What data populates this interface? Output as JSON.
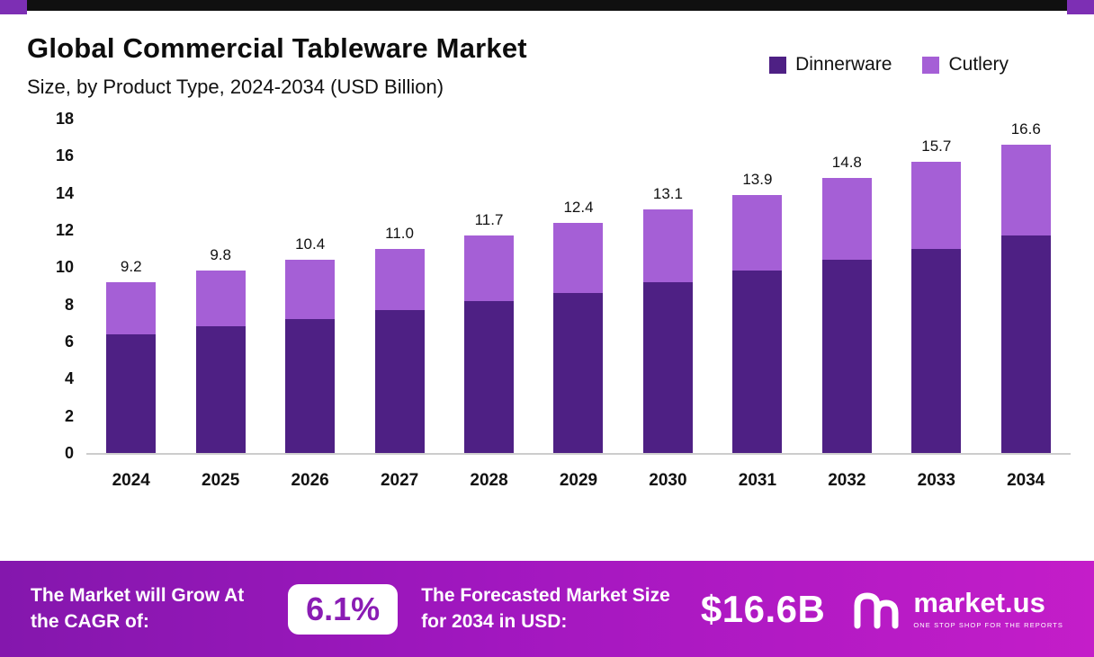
{
  "header": {
    "title": "Global Commercial Tableware Market",
    "subtitle": "Size, by Product Type, 2024-2034 (USD Billion)"
  },
  "legend": [
    {
      "label": "Dinnerware",
      "color": "#4e2084"
    },
    {
      "label": "Cutlery",
      "color": "#a55fd6"
    }
  ],
  "chart_data": {
    "type": "bar",
    "stacked": true,
    "title": "Global Commercial Tableware Market Size, by Product Type, 2024-2034 (USD Billion)",
    "categories": [
      "2024",
      "2025",
      "2026",
      "2027",
      "2028",
      "2029",
      "2030",
      "2031",
      "2032",
      "2033",
      "2034"
    ],
    "series": [
      {
        "name": "Dinnerware",
        "color": "#4e2084",
        "values": [
          6.4,
          6.8,
          7.2,
          7.7,
          8.2,
          8.6,
          9.2,
          9.8,
          10.4,
          11.0,
          11.7
        ]
      },
      {
        "name": "Cutlery",
        "color": "#a55fd6",
        "values": [
          2.8,
          3.0,
          3.2,
          3.3,
          3.5,
          3.8,
          3.9,
          4.1,
          4.4,
          4.7,
          4.9
        ]
      }
    ],
    "totals": [
      9.2,
      9.8,
      10.4,
      11.0,
      11.7,
      12.4,
      13.1,
      13.9,
      14.8,
      15.7,
      16.6
    ],
    "total_labels": [
      "9.2",
      "9.8",
      "10.4",
      "11.0",
      "11.7",
      "12.4",
      "13.1",
      "13.9",
      "14.8",
      "15.7",
      "16.6"
    ],
    "ylim": [
      0,
      18
    ],
    "yticks": [
      0,
      2,
      4,
      6,
      8,
      10,
      12,
      14,
      16,
      18
    ],
    "grid": false,
    "legend_position": "top-right",
    "xlabel": "",
    "ylabel": ""
  },
  "banner": {
    "cagr_label": "The Market will Grow At the CAGR of:",
    "cagr_value": "6.1%",
    "forecast_label": "The Forecasted Market Size for 2034 in USD:",
    "forecast_value": "$16.6B",
    "brand": "market.us",
    "brand_tagline": "ONE STOP SHOP FOR THE REPORTS"
  }
}
